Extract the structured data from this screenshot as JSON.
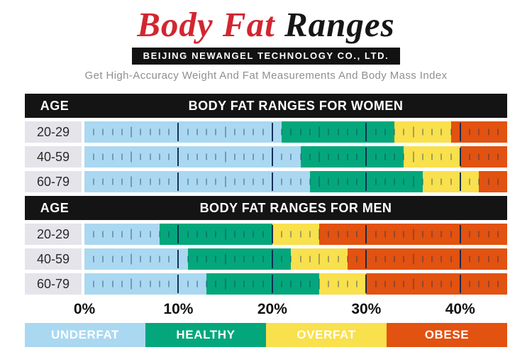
{
  "header": {
    "title_red": "Body Fat",
    "title_black": "Ranges",
    "banner": "BEIJING NEWANGEL TECHNOLOGY CO., LTD.",
    "subtitle": "Get High-Accuracy Weight And Fat Measurements And Body Mass Index"
  },
  "chart_data": {
    "type": "bar",
    "variant": "stacked-range-scale",
    "unit": "% body fat",
    "axis": {
      "min": 0,
      "max": 45,
      "tick_values": [
        0,
        10,
        20,
        30,
        40
      ],
      "tick_labels": [
        "0%",
        "10%",
        "20%",
        "30%",
        "40%"
      ],
      "minor_tick_step": 1,
      "mid_tick_step": 5,
      "major_tick_step": 10
    },
    "categories": [
      "UNDERFAT",
      "HEALTHY",
      "OVERFAT",
      "OBESE"
    ],
    "tables": [
      {
        "age_header": "AGE",
        "title": "BODY FAT RANGES FOR WOMEN",
        "rows": [
          {
            "age": "20-29",
            "bounds": [
              21,
              33,
              39
            ],
            "ranges": {
              "underfat": [
                0,
                21
              ],
              "healthy": [
                21,
                33
              ],
              "overfat": [
                33,
                39
              ],
              "obese": [
                39,
                45
              ]
            }
          },
          {
            "age": "40-59",
            "bounds": [
              23,
              34,
              40
            ],
            "ranges": {
              "underfat": [
                0,
                23
              ],
              "healthy": [
                23,
                34
              ],
              "overfat": [
                34,
                40
              ],
              "obese": [
                40,
                45
              ]
            }
          },
          {
            "age": "60-79",
            "bounds": [
              24,
              36,
              42
            ],
            "ranges": {
              "underfat": [
                0,
                24
              ],
              "healthy": [
                24,
                36
              ],
              "overfat": [
                36,
                42
              ],
              "obese": [
                42,
                45
              ]
            }
          }
        ]
      },
      {
        "age_header": "AGE",
        "title": "BODY FAT RANGES FOR MEN",
        "rows": [
          {
            "age": "20-29",
            "bounds": [
              8,
              20,
              25
            ],
            "ranges": {
              "underfat": [
                0,
                8
              ],
              "healthy": [
                8,
                20
              ],
              "overfat": [
                20,
                25
              ],
              "obese": [
                25,
                45
              ]
            }
          },
          {
            "age": "40-59",
            "bounds": [
              11,
              22,
              28
            ],
            "ranges": {
              "underfat": [
                0,
                11
              ],
              "healthy": [
                11,
                22
              ],
              "overfat": [
                22,
                28
              ],
              "obese": [
                28,
                45
              ]
            }
          },
          {
            "age": "60-79",
            "bounds": [
              13,
              25,
              30
            ],
            "ranges": {
              "underfat": [
                0,
                13
              ],
              "healthy": [
                13,
                25
              ],
              "overfat": [
                25,
                30
              ],
              "obese": [
                30,
                45
              ]
            }
          }
        ]
      }
    ]
  },
  "legend": [
    {
      "label": "UNDERFAT",
      "color": "#aad8f1"
    },
    {
      "label": "HEALTHY",
      "color": "#04a77b"
    },
    {
      "label": "OVERFAT",
      "color": "#f9e04d"
    },
    {
      "label": "OBESE",
      "color": "#e25210"
    }
  ],
  "colors": {
    "title_red": "#d22630",
    "header_black": "#141414",
    "label_cell": "#e5e4ea",
    "tick": "#123462"
  }
}
